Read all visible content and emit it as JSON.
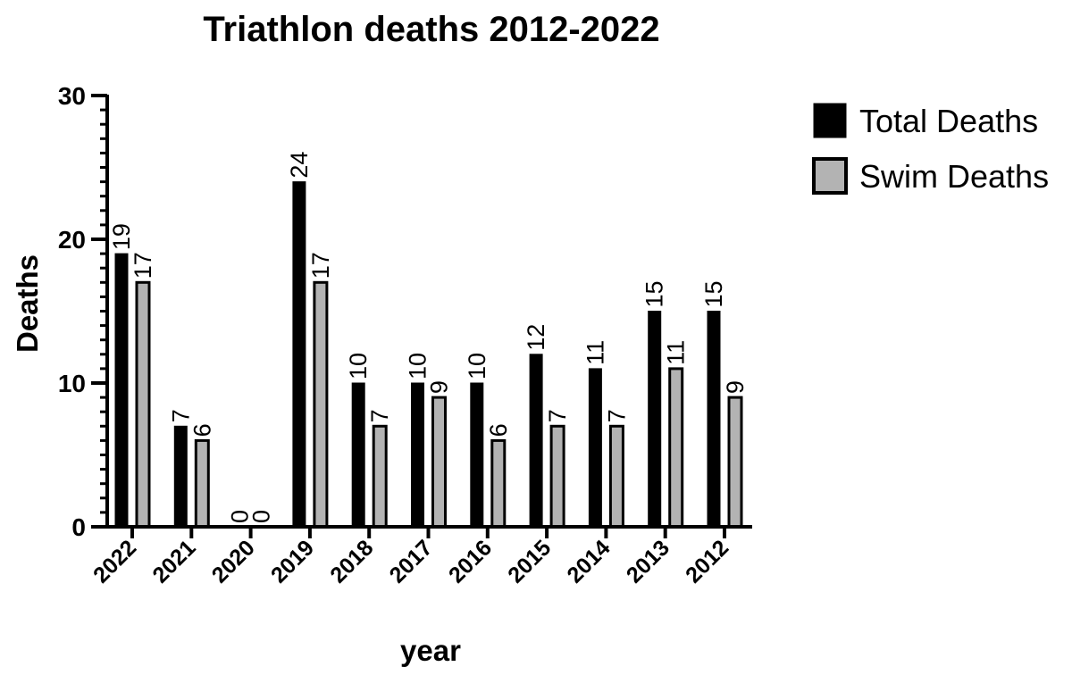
{
  "chart_data": {
    "type": "bar",
    "title": "Triathlon deaths 2012-2022",
    "xlabel": "year",
    "ylabel": "Deaths",
    "ylim": [
      0,
      30
    ],
    "yticks": [
      "0",
      "10",
      "20",
      "30"
    ],
    "categories": [
      "2022",
      "2021",
      "2020",
      "2019",
      "2018",
      "2017",
      "2016",
      "2015",
      "2014",
      "2013",
      "2012"
    ],
    "series": [
      {
        "name": "Total Deaths",
        "color": "#000000",
        "values": [
          19,
          7,
          0,
          24,
          10,
          10,
          10,
          12,
          11,
          15,
          15
        ],
        "labels": [
          "19",
          "7",
          "0",
          "24",
          "10",
          "10",
          "10",
          "12",
          "11",
          "15",
          "15"
        ]
      },
      {
        "name": "Swim Deaths",
        "color": "#b3b3b3",
        "values": [
          17,
          6,
          0,
          17,
          7,
          9,
          6,
          7,
          7,
          11,
          9
        ],
        "labels": [
          "17",
          "6",
          "0",
          "17",
          "7",
          "9",
          "6",
          "7",
          "7",
          "11",
          "9"
        ]
      }
    ],
    "grid": false,
    "legend_position": "top-right"
  }
}
